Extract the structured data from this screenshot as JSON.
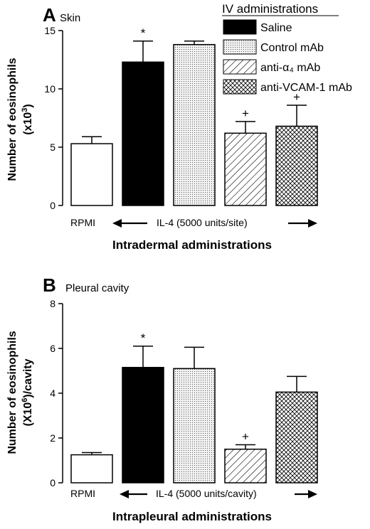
{
  "chart_data": [
    {
      "type": "bar",
      "panel": "A",
      "title": "Skin",
      "ylabel_line1": "Number of eosinophils",
      "ylabel_line2": "(x10",
      "ylabel_sup": "3",
      "ylabel_close": ")",
      "xlabel": "Intradermal administrations",
      "ylim": [
        0,
        15
      ],
      "yticks": [
        0,
        5,
        10,
        15
      ],
      "ytick_labels": [
        "0",
        "5",
        "10",
        "15"
      ],
      "rpmi_label": "RPMI",
      "il4_label": "IL-4 (5000 units/site)",
      "values": [
        5.3,
        12.3,
        13.8,
        6.2,
        6.8
      ],
      "errors": [
        0.6,
        1.8,
        0.3,
        1.0,
        1.8
      ],
      "markers": [
        "",
        "*",
        "",
        "+",
        "+"
      ],
      "fills": [
        "white",
        "black",
        "dots",
        "diag",
        "cross"
      ]
    },
    {
      "type": "bar",
      "panel": "B",
      "title": "Pleural cavity",
      "ylabel_line1": "Number of eosinophils",
      "ylabel_line2": "(X10",
      "ylabel_sup": "6",
      "ylabel_close": ")/cavity",
      "xlabel": "Intrapleural administrations",
      "ylim": [
        0,
        8
      ],
      "yticks": [
        0,
        2,
        4,
        6,
        8
      ],
      "ytick_labels": [
        "0",
        "2",
        "4",
        "6",
        "8"
      ],
      "rpmi_label": "RPMI",
      "il4_label": "IL-4 (5000 units/cavity)",
      "values": [
        1.25,
        5.15,
        5.1,
        1.5,
        4.05
      ],
      "errors": [
        0.1,
        0.95,
        0.95,
        0.2,
        0.7
      ],
      "markers": [
        "",
        "*",
        "",
        "+",
        ""
      ],
      "fills": [
        "white",
        "black",
        "dots",
        "diag",
        "cross"
      ]
    }
  ],
  "legend": {
    "title": "IV administrations",
    "items": [
      {
        "label": "Saline",
        "fill": "black"
      },
      {
        "label": "Control mAb",
        "fill": "dots"
      },
      {
        "label": "anti-α₄ mAb",
        "fill": "diag"
      },
      {
        "label": "anti-VCAM-1 mAb",
        "fill": "cross"
      }
    ]
  }
}
